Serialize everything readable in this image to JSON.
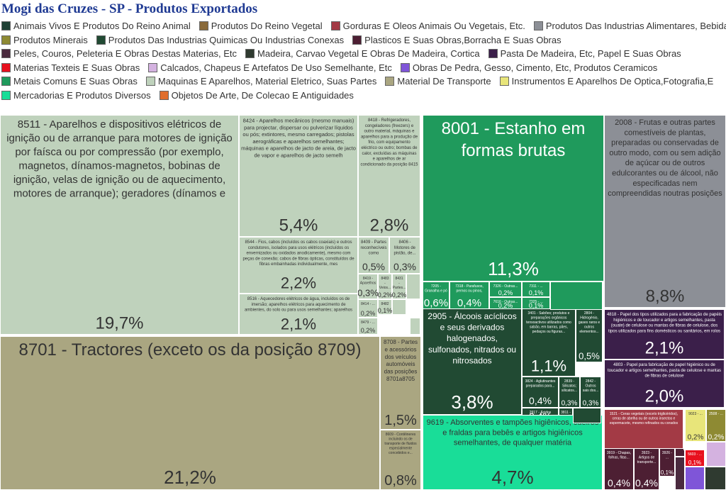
{
  "chart_data": {
    "type": "treemap",
    "title": "Mogi das Cruzes - SP - Produtos Exportados",
    "legend": {
      "placement": "top",
      "entries": [
        {
          "name": "Animais Vivos E Produtos Do Reino Animal",
          "color": "#1e4034"
        },
        {
          "name": "Produtos Do Reino Vegetal",
          "color": "#8a6a3a"
        },
        {
          "name": "Gorduras E Oleos Animais Ou Vegetais, Etc.",
          "color": "#a33a45"
        },
        {
          "name": "Produtos Das Industrias Alimentares, Bebidas, Etc.",
          "color": "#8c8f96"
        },
        {
          "name": "Produtos Minerais",
          "color": "#8e8a33"
        },
        {
          "name": "Produtos Das Industrias Quimicas Ou Industrias Conexas",
          "color": "#214a33"
        },
        {
          "name": "Plasticos E Suas Obras,Borracha E Suas Obras",
          "color": "#4d1f33"
        },
        {
          "name": "Peles, Couros, Peleteria E Obras Destas Materias, Etc",
          "color": "#4a2a3e"
        },
        {
          "name": "Madeira, Carvao Vegetal E Obras De Madeira, Cortica",
          "color": "#2f3a30"
        },
        {
          "name": "Pasta De Madeira, Etc, Papel E Suas Obras",
          "color": "#3b1f4a"
        },
        {
          "name": "Materias Texteis E Suas Obras",
          "color": "#e8101e"
        },
        {
          "name": "Calcados, Chapeus E Artefatos De Uso Semelhante, Etc",
          "color": "#d4b2e0"
        },
        {
          "name": "Obras De Pedra, Gesso, Cimento, Etc, Produtos Ceramicos",
          "color": "#7f55d8"
        },
        {
          "name": "Metais Comuns E Suas Obras",
          "color": "#1f9a5c"
        },
        {
          "name": "Maquinas E Aparelhos, Material Eletrico, Suas Partes",
          "color": "#bfd2bc"
        },
        {
          "name": "Material De Transporte",
          "color": "#aaa681"
        },
        {
          "name": "Instrumentos E Aparelhos De Optica,Fotografia,E",
          "color": "#e8e57a"
        },
        {
          "name": "Mercadorias E Produtos Diversos",
          "color": "#19dd98"
        },
        {
          "name": "Objetos De Arte, De Colecao E Antiguidades",
          "color": "#e06d2c"
        }
      ]
    },
    "nodes": [
      {
        "label": "8511 - Aparelhos e dispositivos elétricos de ignição ou de arranque para motores de ignição por faísca ou por compressão (por exemplo, magnetos, dínamos-magnetos, bobinas de ignição, velas de ignição ou de aquecimento, motores de arranque); geradores (dínamos e",
        "value": "19,7%",
        "group": 14
      },
      {
        "label": "8424 - Aparelhos mecânicos (mesmo manuais) para projectar, dispersar ou pulverizar líquidos ou pós; extintores, mesmo carregados; pistolas aerográficas e aparelhos semelhantes; máquinas e aparelhos de jacto de areia, de jacto de vapor e aparelhos de jacto semelh",
        "value": "5,4%",
        "group": 14
      },
      {
        "label": "8418 - Refrigeradores, congeladores (freezers) e outro material, máquinas e aparelhos para a produção de frio, com equipamento eléctrico ou outro; bombas de calor, excluídas as máquinas e aparelhos de ar condicionado da posição 8415",
        "value": "2,8%",
        "group": 14
      },
      {
        "label": "8544 - Fios, cabos (incluídos os cabos coaxiais) e outros condutores, isolados para usos elétricos (incluídos os envernizados ou oxidados anodicamente), mesmo com peças de conexão; cabos de fibras ópticas, constituídos de fibras embainhadas individualmente, mes",
        "value": "2,2%",
        "group": 14
      },
      {
        "label": "8409 - Partes reconhecíveis como exclusiva ou...",
        "value": "0,5%",
        "group": 14
      },
      {
        "label": "8406 - Motores de pistão, de...",
        "value": "0,3%",
        "group": 14
      },
      {
        "label": "8419 - Aparelhos e dispositivos...",
        "value": "0,3%",
        "group": 14
      },
      {
        "label": "8483 - Veios...",
        "value": "0,2%",
        "group": 14
      },
      {
        "label": "8431 - Partes...",
        "value": "0,2%",
        "group": 14
      },
      {
        "label": "8414 - ...",
        "value": "0,2%",
        "group": 14
      },
      {
        "label": "8482 - ...",
        "value": "0,1%",
        "group": 14
      },
      {
        "label": "8479 - ...",
        "value": "0,2%",
        "group": 14
      },
      {
        "label": "8516 - Aquecedores elétricos de água, incluídos os de imersão; aparelhos elétricos para aquecimento de ambientes, do solo ou para usos semelhantes; aparelhos electrotérmicos para arranjos do cabelo (por exemplo: secadores de cabelo, frisadores, aquecedores de",
        "value": "2,1%",
        "group": 14
      },
      {
        "label": "8001 - Estanho em formas brutas",
        "value": "11,3%",
        "group": 13
      },
      {
        "label": "7205 - Granalha e pó de ferro fundido bruto, de ferro spiegel (especular), de ferro...",
        "value": "0,6%",
        "group": 13
      },
      {
        "label": "7318 - Parafusos, pernos ou pinos, roscados, porcas...",
        "value": "0,4%",
        "group": 13
      },
      {
        "label": "7326 - Outras...",
        "value": "0,2%",
        "group": 13
      },
      {
        "label": "7311 - ...",
        "value": "0,1%",
        "group": 13
      },
      {
        "label": "7616 - Outras...",
        "value": "0,2%",
        "group": 13
      },
      {
        "label": "7325 - ...",
        "value": "0,1%",
        "group": 13
      },
      {
        "label": "2008 - Frutas e outras partes comestíveis de plantas, preparadas ou conservadas de outro modo, com ou sem adição de açúcar ou de outros edulcorantes ou de álcool, não especificadas nem compreendidas noutras posições",
        "value": "8,8%",
        "group": 3
      },
      {
        "label": "8701 - Tractores (exceto os da posição 8709)",
        "value": "21,2%",
        "group": 15
      },
      {
        "label": "8708 - Partes e acessórios dos veículos automóveis das posições 8701a8705",
        "value": "1,5%",
        "group": 15
      },
      {
        "label": "8609 - Contêineres incluindo os de transporte de fluidos especialmente concebidos e...",
        "value": "0,8%",
        "group": 15
      },
      {
        "label": "2905 - Álcoois acíclicos e seus derivados halogenados, sulfonados, nitrados ou nitrosados",
        "value": "3,8%",
        "group": 5
      },
      {
        "label": "3401 - Sabões; produtos e preparações orgânicos tensoactivos utilizados como sabão, em barras, pães, pedaços ou figuras...",
        "value": "1,1%",
        "group": 5
      },
      {
        "label": "2804 - Hidrogénio, gases raros e outros elementos...",
        "value": "0,5%",
        "group": 5
      },
      {
        "label": "3824 - Aglutinantes preparados para...",
        "value": "0,4%",
        "group": 5
      },
      {
        "label": "2839 - Silicatos; silicatos...",
        "value": "0,3%",
        "group": 5
      },
      {
        "label": "2842 - Outros sais dos...",
        "value": "0,3%",
        "group": 5
      },
      {
        "label": "2917 - Ácidos policarboxílicos...",
        "value": "0,4%",
        "group": 5
      },
      {
        "label": "3811 - ...",
        "value": "",
        "group": 5
      },
      {
        "label": "4818 - Papel dos tipos utilizados para a fabricação de papéis higiénicos e de toucador e artigos semelhantes, pasta (ouate) de celulose ou mantas de fibras de celulose, dos tipos utilizados para fins domésticos ou sanitários, em rolos de largura não superior a 36cm,ou",
        "value": "2,1%",
        "group": 9
      },
      {
        "label": "4803 - Papel para fabricação de papel higiénico ou de toucador e artigos semelhantes, pasta de celulose e mantas de fibras de celulose",
        "value": "2,0%",
        "group": 9
      },
      {
        "label": "9619 - Absorventes e tampões higiênicos, cueiros e fraldas para bebês e artigos higiênicos semelhantes, de qualquer matéria",
        "value": "4,7%",
        "group": 17
      },
      {
        "label": "1521 - Ceras vegetais (exceto triglicéridos), ceras de abelha ou de outros insectos e espermacete, mesmo refinados ou corados",
        "value": "1,2%",
        "group": 2
      },
      {
        "label": "9023 - ...",
        "value": "0,2%",
        "group": 16
      },
      {
        "label": "2508 - ...",
        "value": "0,2%",
        "group": 4
      },
      {
        "label": "3919 - Chapas, folhas, fitas...",
        "value": "0,4%",
        "group": 6
      },
      {
        "label": "3923 - Artigos de transporte...",
        "value": "0,4%",
        "group": 6
      },
      {
        "label": "3926 - ...",
        "value": "0,1%",
        "group": 6
      },
      {
        "label": "5603 - ...",
        "value": "0,1%",
        "group": 10
      },
      {
        "label": "",
        "value": "",
        "group": 12
      },
      {
        "label": "",
        "value": "",
        "group": 8
      },
      {
        "label": "",
        "value": "",
        "group": 7
      },
      {
        "label": "",
        "value": "",
        "group": 11
      },
      {
        "label": "",
        "value": "",
        "group": 14
      },
      {
        "label": "",
        "value": "",
        "group": 14
      },
      {
        "label": "",
        "value": "",
        "group": 14
      },
      {
        "label": "",
        "value": "",
        "group": 14
      },
      {
        "label": "",
        "value": "",
        "group": 13
      },
      {
        "label": "",
        "value": "",
        "group": 13
      },
      {
        "label": "",
        "value": "",
        "group": 5
      },
      {
        "label": "",
        "value": "",
        "group": 6
      },
      {
        "label": "",
        "value": "",
        "group": 9
      },
      {
        "label": "",
        "value": "",
        "group": 4
      }
    ]
  }
}
